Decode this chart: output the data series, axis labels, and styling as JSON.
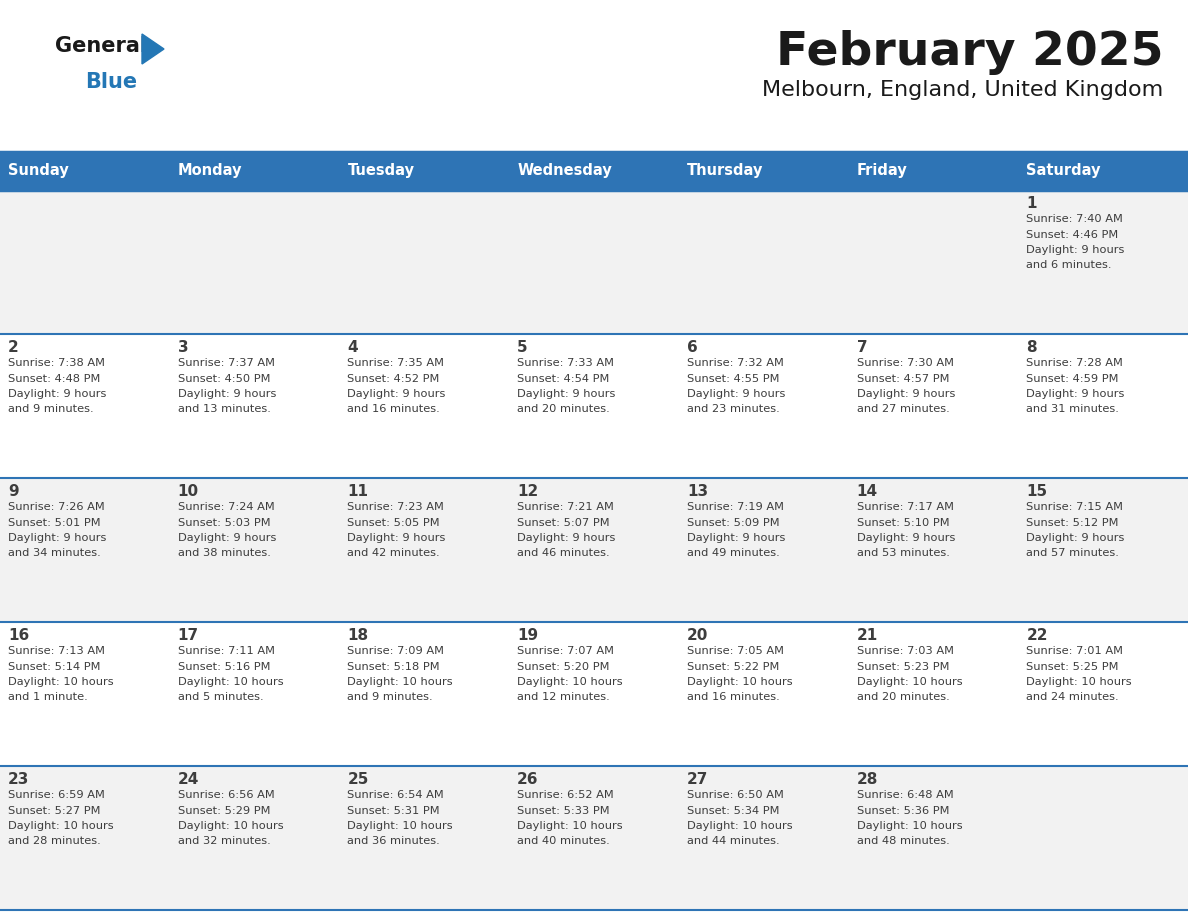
{
  "title": "February 2025",
  "subtitle": "Melbourn, England, United Kingdom",
  "days_of_week": [
    "Sunday",
    "Monday",
    "Tuesday",
    "Wednesday",
    "Thursday",
    "Friday",
    "Saturday"
  ],
  "header_bg": "#2E74B5",
  "header_text": "#FFFFFF",
  "cell_bg_odd": "#F2F2F2",
  "cell_bg_even": "#FFFFFF",
  "divider_color": "#2E74B5",
  "text_color": "#3d3d3d",
  "title_color": "#1a1a1a",
  "logo_general_color": "#1a1a1a",
  "logo_blue_color": "#2477B5",
  "weeks": [
    [
      {
        "day": null,
        "sunrise": null,
        "sunset": null,
        "daylight": null
      },
      {
        "day": null,
        "sunrise": null,
        "sunset": null,
        "daylight": null
      },
      {
        "day": null,
        "sunrise": null,
        "sunset": null,
        "daylight": null
      },
      {
        "day": null,
        "sunrise": null,
        "sunset": null,
        "daylight": null
      },
      {
        "day": null,
        "sunrise": null,
        "sunset": null,
        "daylight": null
      },
      {
        "day": null,
        "sunrise": null,
        "sunset": null,
        "daylight": null
      },
      {
        "day": 1,
        "sunrise": "7:40 AM",
        "sunset": "4:46 PM",
        "daylight": "9 hours\nand 6 minutes."
      }
    ],
    [
      {
        "day": 2,
        "sunrise": "7:38 AM",
        "sunset": "4:48 PM",
        "daylight": "9 hours\nand 9 minutes."
      },
      {
        "day": 3,
        "sunrise": "7:37 AM",
        "sunset": "4:50 PM",
        "daylight": "9 hours\nand 13 minutes."
      },
      {
        "day": 4,
        "sunrise": "7:35 AM",
        "sunset": "4:52 PM",
        "daylight": "9 hours\nand 16 minutes."
      },
      {
        "day": 5,
        "sunrise": "7:33 AM",
        "sunset": "4:54 PM",
        "daylight": "9 hours\nand 20 minutes."
      },
      {
        "day": 6,
        "sunrise": "7:32 AM",
        "sunset": "4:55 PM",
        "daylight": "9 hours\nand 23 minutes."
      },
      {
        "day": 7,
        "sunrise": "7:30 AM",
        "sunset": "4:57 PM",
        "daylight": "9 hours\nand 27 minutes."
      },
      {
        "day": 8,
        "sunrise": "7:28 AM",
        "sunset": "4:59 PM",
        "daylight": "9 hours\nand 31 minutes."
      }
    ],
    [
      {
        "day": 9,
        "sunrise": "7:26 AM",
        "sunset": "5:01 PM",
        "daylight": "9 hours\nand 34 minutes."
      },
      {
        "day": 10,
        "sunrise": "7:24 AM",
        "sunset": "5:03 PM",
        "daylight": "9 hours\nand 38 minutes."
      },
      {
        "day": 11,
        "sunrise": "7:23 AM",
        "sunset": "5:05 PM",
        "daylight": "9 hours\nand 42 minutes."
      },
      {
        "day": 12,
        "sunrise": "7:21 AM",
        "sunset": "5:07 PM",
        "daylight": "9 hours\nand 46 minutes."
      },
      {
        "day": 13,
        "sunrise": "7:19 AM",
        "sunset": "5:09 PM",
        "daylight": "9 hours\nand 49 minutes."
      },
      {
        "day": 14,
        "sunrise": "7:17 AM",
        "sunset": "5:10 PM",
        "daylight": "9 hours\nand 53 minutes."
      },
      {
        "day": 15,
        "sunrise": "7:15 AM",
        "sunset": "5:12 PM",
        "daylight": "9 hours\nand 57 minutes."
      }
    ],
    [
      {
        "day": 16,
        "sunrise": "7:13 AM",
        "sunset": "5:14 PM",
        "daylight": "10 hours\nand 1 minute."
      },
      {
        "day": 17,
        "sunrise": "7:11 AM",
        "sunset": "5:16 PM",
        "daylight": "10 hours\nand 5 minutes."
      },
      {
        "day": 18,
        "sunrise": "7:09 AM",
        "sunset": "5:18 PM",
        "daylight": "10 hours\nand 9 minutes."
      },
      {
        "day": 19,
        "sunrise": "7:07 AM",
        "sunset": "5:20 PM",
        "daylight": "10 hours\nand 12 minutes."
      },
      {
        "day": 20,
        "sunrise": "7:05 AM",
        "sunset": "5:22 PM",
        "daylight": "10 hours\nand 16 minutes."
      },
      {
        "day": 21,
        "sunrise": "7:03 AM",
        "sunset": "5:23 PM",
        "daylight": "10 hours\nand 20 minutes."
      },
      {
        "day": 22,
        "sunrise": "7:01 AM",
        "sunset": "5:25 PM",
        "daylight": "10 hours\nand 24 minutes."
      }
    ],
    [
      {
        "day": 23,
        "sunrise": "6:59 AM",
        "sunset": "5:27 PM",
        "daylight": "10 hours\nand 28 minutes."
      },
      {
        "day": 24,
        "sunrise": "6:56 AM",
        "sunset": "5:29 PM",
        "daylight": "10 hours\nand 32 minutes."
      },
      {
        "day": 25,
        "sunrise": "6:54 AM",
        "sunset": "5:31 PM",
        "daylight": "10 hours\nand 36 minutes."
      },
      {
        "day": 26,
        "sunrise": "6:52 AM",
        "sunset": "5:33 PM",
        "daylight": "10 hours\nand 40 minutes."
      },
      {
        "day": 27,
        "sunrise": "6:50 AM",
        "sunset": "5:34 PM",
        "daylight": "10 hours\nand 44 minutes."
      },
      {
        "day": 28,
        "sunrise": "6:48 AM",
        "sunset": "5:36 PM",
        "daylight": "10 hours\nand 48 minutes."
      },
      {
        "day": null,
        "sunrise": null,
        "sunset": null,
        "daylight": null
      }
    ]
  ],
  "fig_width": 11.88,
  "fig_height": 9.18,
  "dpi": 100
}
